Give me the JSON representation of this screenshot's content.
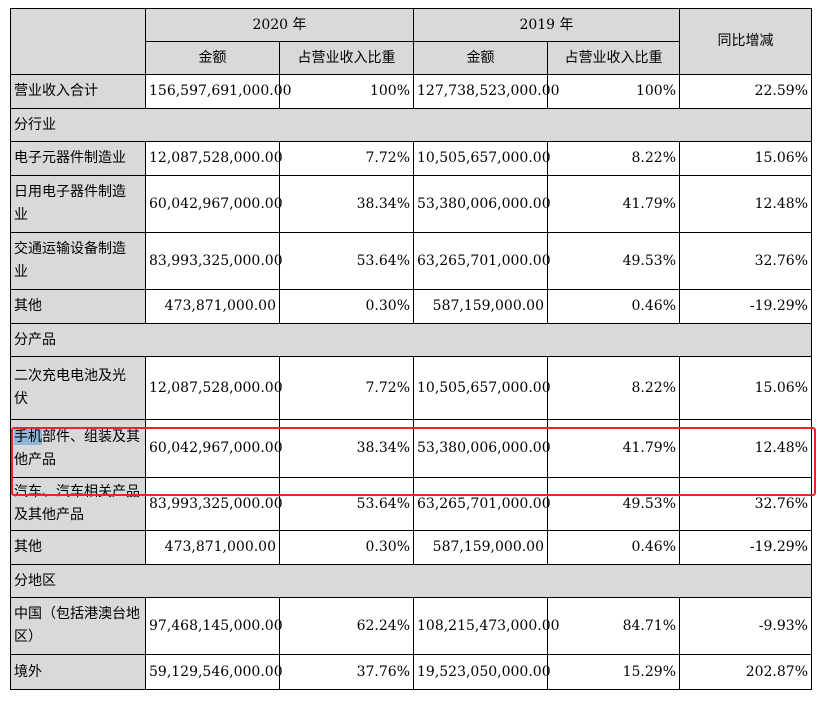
{
  "headers": {
    "year1": "2020 年",
    "year2": "2019 年",
    "amount1": "金额",
    "ratio1": "占营业收入比重",
    "amount2": "金额",
    "ratio2": "占营业收入比重",
    "yoy": "同比增减"
  },
  "total": {
    "label": "营业收入合计",
    "a2020": "156,597,691,000.00",
    "r2020": "100%",
    "a2019": "127,738,523,000.00",
    "r2019": "100%",
    "yoy": "22.59%"
  },
  "section_industry": "分行业",
  "industry": [
    {
      "label": "电子元器件制造业",
      "a2020": "12,087,528,000.00",
      "r2020": "7.72%",
      "a2019": "10,505,657,000.00",
      "r2019": "8.22%",
      "yoy": "15.06%"
    },
    {
      "label_l1": "日用电子器件制造",
      "label_l2": "业",
      "a2020": "60,042,967,000.00",
      "r2020": "38.34%",
      "a2019": "53,380,006,000.00",
      "r2019": "41.79%",
      "yoy": "12.48%"
    },
    {
      "label_l1": "交通运输设备制造",
      "label_l2": "业",
      "a2020": "83,993,325,000.00",
      "r2020": "53.64%",
      "a2019": "63,265,701,000.00",
      "r2019": "49.53%",
      "yoy": "32.76%"
    },
    {
      "label": "其他",
      "a2020": "473,871,000.00",
      "r2020": "0.30%",
      "a2019": "587,159,000.00",
      "r2019": "0.46%",
      "yoy": "-19.29%"
    }
  ],
  "section_product": "分产品",
  "product": [
    {
      "label_l1": "二次充电电池及光",
      "label_l2": "伏",
      "a2020": "12,087,528,000.00",
      "r2020": "7.72%",
      "a2019": "10,505,657,000.00",
      "r2019": "8.22%",
      "yoy": "15.06%"
    },
    {
      "label_sel": "手机",
      "label_l1_rest": "部件、组装及其",
      "label_l2": "他产品",
      "a2020": "60,042,967,000.00",
      "r2020": "38.34%",
      "a2019": "53,380,006,000.00",
      "r2019": "41.79%",
      "yoy": "12.48%"
    },
    {
      "label_l1": "汽车、汽车相关产品",
      "label_l2": "及其他产品",
      "a2020": "83,993,325,000.00",
      "r2020": "53.64%",
      "a2019": "63,265,701,000.00",
      "r2019": "49.53%",
      "yoy": "32.76%"
    },
    {
      "label": "其他",
      "a2020": "473,871,000.00",
      "r2020": "0.30%",
      "a2019": "587,159,000.00",
      "r2019": "0.46%",
      "yoy": "-19.29%"
    }
  ],
  "section_region": "分地区",
  "region": [
    {
      "label_l1": "中国（包括港澳台地",
      "label_l2": "区）",
      "a2020": "97,468,145,000.00",
      "r2020": "62.24%",
      "a2019": "108,215,473,000.00",
      "r2019": "84.71%",
      "yoy": "-9.93%"
    },
    {
      "label": "境外",
      "a2020": "59,129,546,000.00",
      "r2020": "37.76%",
      "a2019": "19,523,050,000.00",
      "r2019": "15.29%",
      "yoy": "202.87%"
    }
  ],
  "highlight_color": "#e8262b"
}
